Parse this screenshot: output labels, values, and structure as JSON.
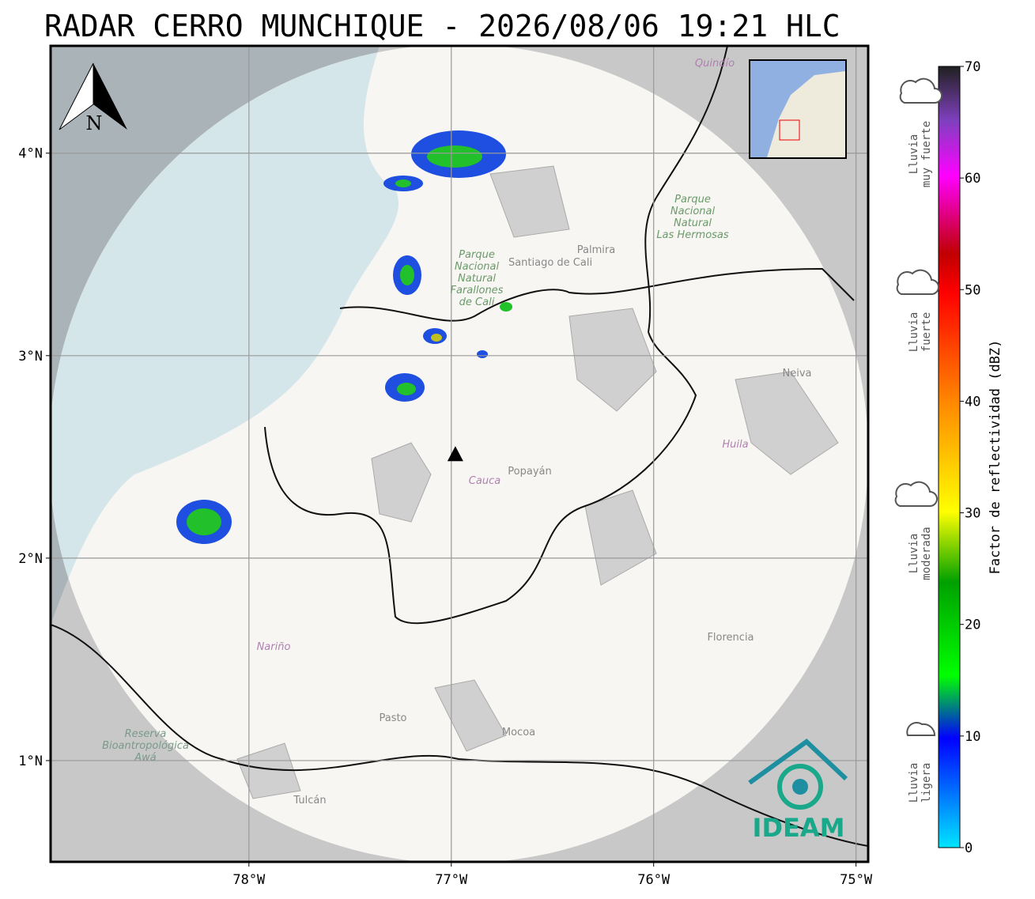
{
  "title": "RADAR CERRO MUNCHIQUE - 2026/08/06 19:21 HLC",
  "map": {
    "xlim": [
      -78.98,
      -74.94
    ],
    "ylim": [
      0.5,
      4.53
    ],
    "xticks": [
      {
        "value": -78,
        "label": "78°W"
      },
      {
        "value": -77,
        "label": "77°W"
      },
      {
        "value": -76,
        "label": "76°W"
      },
      {
        "value": -75,
        "label": "75°W"
      }
    ],
    "yticks": [
      {
        "value": 1,
        "label": "1°N"
      },
      {
        "value": 2,
        "label": "2°N"
      },
      {
        "value": 3,
        "label": "3°N"
      },
      {
        "value": 4,
        "label": "4°N"
      }
    ],
    "grid": true,
    "radar_site": {
      "lon": -76.98,
      "lat": 2.51
    },
    "north": "N",
    "places": [
      "Santiago de Cali",
      "Palmira",
      "Popayán",
      "Cauca",
      "Huila",
      "Neiva",
      "Nariño",
      "Pasto",
      "Mocoa",
      "Florencia",
      "Tulcán",
      "Quindío"
    ],
    "parks": [
      [
        "Parque",
        "Nacional",
        "Natural",
        "Farallones",
        "de Cali"
      ],
      [
        "Parque",
        "Nacional",
        "Natural",
        "Las Hermosas"
      ],
      [
        "Reserva",
        "Bioantropológica",
        "Awá"
      ]
    ],
    "logo": "IDEAM"
  },
  "colorbar": {
    "label": "Factor de reflectividad (dBZ)",
    "lim": [
      0,
      70
    ],
    "ticks": [
      0,
      10,
      20,
      30,
      40,
      50,
      60,
      70
    ],
    "rain_levels": [
      [
        "Lluvia",
        "muy fuerte"
      ],
      [
        "Lluvia",
        "fuerte"
      ],
      [
        "Lluvia",
        "moderada"
      ],
      [
        "Lluvia",
        "ligera"
      ]
    ]
  }
}
